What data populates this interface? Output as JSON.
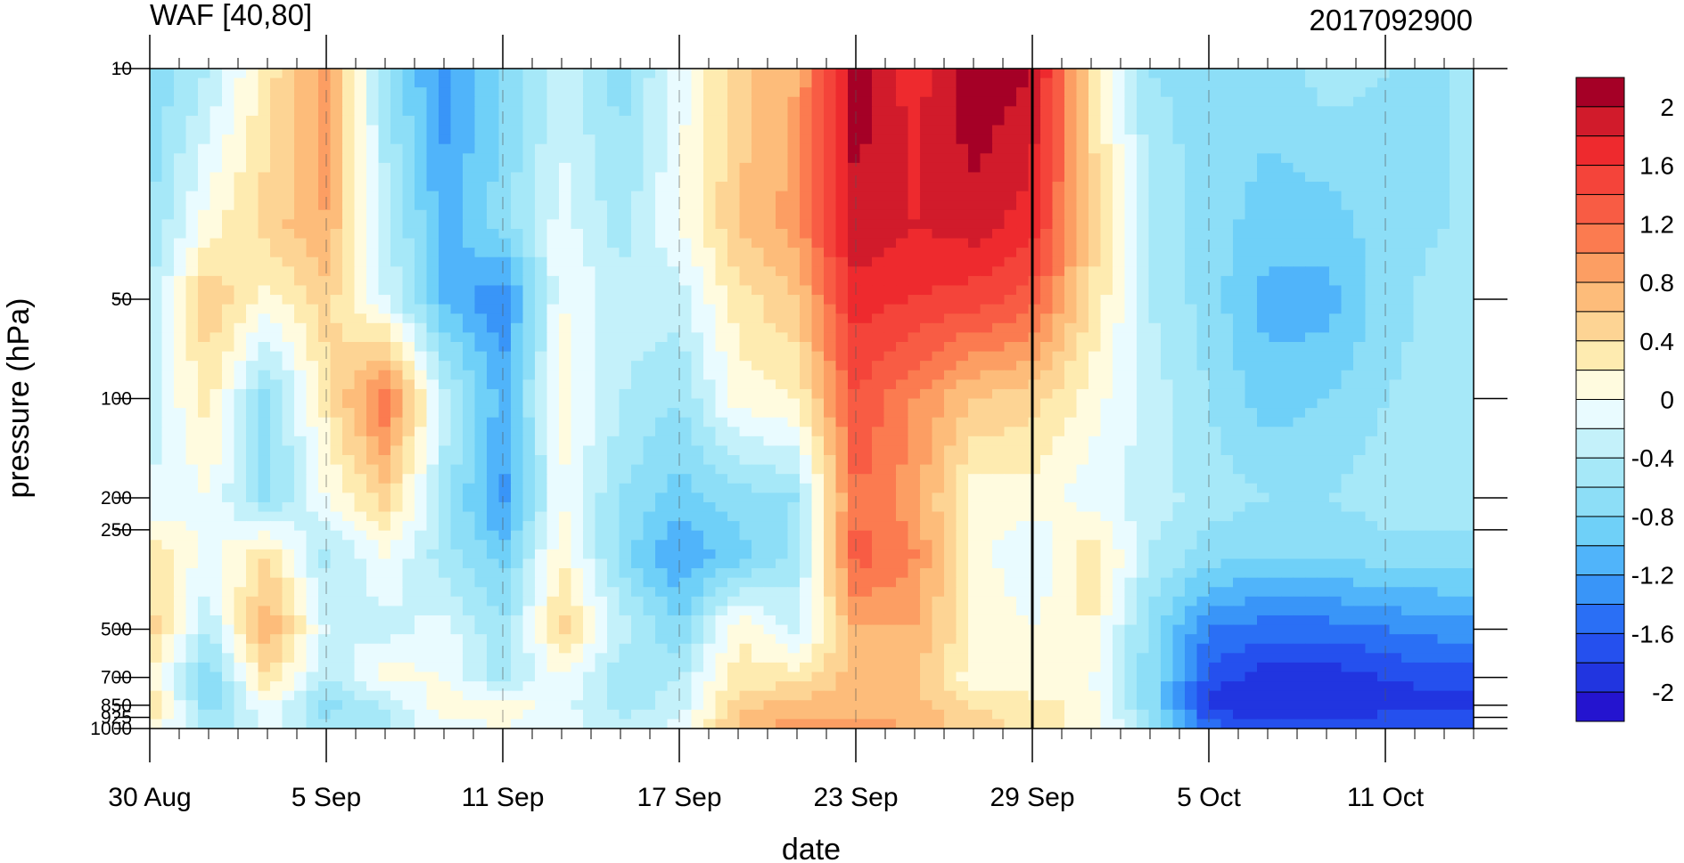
{
  "chart_data": {
    "type": "heatmap",
    "title": "WAF [40,80]",
    "subtitle": "2017092900",
    "xlabel": "date",
    "ylabel": "pressure (hPa)",
    "x_tick_labels": [
      "30 Aug",
      "5 Sep",
      "11 Sep",
      "17 Sep",
      "23 Sep",
      "29 Sep",
      "5 Oct",
      "11 Oct"
    ],
    "y_tick_labels": [
      "10",
      "50",
      "100",
      "200",
      "250",
      "500",
      "700",
      "850",
      "925",
      "1000"
    ],
    "y_tick_values": [
      10,
      50,
      100,
      200,
      250,
      500,
      700,
      850,
      925,
      1000
    ],
    "y_scale": "log",
    "y_reversed": true,
    "x_range_days": [
      0,
      45
    ],
    "forecast_start_label": "29 Sep",
    "colorbar": {
      "labels": [
        "2",
        "1.6",
        "1.2",
        "0.8",
        "0.4",
        "0",
        "-0.4",
        "-0.8",
        "-1.2",
        "-1.6",
        "-2"
      ],
      "levels": [
        2.2,
        2.0,
        1.8,
        1.6,
        1.4,
        1.2,
        1.0,
        0.8,
        0.6,
        0.4,
        0.2,
        0.0,
        -0.2,
        -0.4,
        -0.6,
        -0.8,
        -1.0,
        -1.2,
        -1.4,
        -1.6,
        -1.8,
        -2.0
      ],
      "colors": [
        "#a50026",
        "#d11b2b",
        "#ee2a2e",
        "#f4443a",
        "#f85c44",
        "#fb7b50",
        "#fc9e63",
        "#fdbc7a",
        "#fdd494",
        "#feebb0",
        "#fffbdf",
        "#e9fbff",
        "#c4f1fa",
        "#a6e8f8",
        "#8ddef7",
        "#6fd0f8",
        "#50b4fa",
        "#3995f8",
        "#2a6ff5",
        "#2550ee",
        "#2135e0",
        "#2414cf"
      ]
    },
    "profiles": {
      "days": [
        0,
        2,
        4,
        6,
        8,
        10,
        12,
        14,
        16,
        18,
        20,
        22,
        24,
        26,
        28,
        30,
        32,
        34,
        36,
        38,
        40,
        42,
        44,
        45
      ],
      "levels_hpa": [
        10,
        30,
        50,
        100,
        200,
        300,
        500,
        700,
        850,
        1000
      ],
      "values": [
        [
          -0.7,
          -0.3,
          0.4,
          1.0,
          -0.5,
          -1.2,
          -0.7,
          -0.2,
          -0.6,
          0.0,
          0.6,
          0.9,
          2.2,
          1.8,
          2.3,
          2.1,
          0.5,
          -0.5,
          -0.6,
          -0.6,
          -0.4,
          -0.5,
          -0.5,
          -0.5
        ],
        [
          -0.5,
          0.2,
          0.6,
          0.9,
          -0.2,
          -1.0,
          -0.6,
          0.0,
          -0.4,
          0.1,
          0.7,
          1.0,
          2.1,
          1.9,
          2.0,
          1.8,
          0.6,
          -0.3,
          -0.6,
          -0.8,
          -0.8,
          -0.6,
          -0.5,
          -0.5
        ],
        [
          -0.3,
          0.7,
          0.2,
          0.6,
          -0.1,
          -0.9,
          -1.3,
          0.1,
          -0.2,
          -0.2,
          0.4,
          0.7,
          1.8,
          1.7,
          1.6,
          1.4,
          0.5,
          -0.3,
          -0.6,
          -1.0,
          -1.0,
          -0.6,
          -0.4,
          -0.4
        ],
        [
          -0.2,
          0.4,
          -0.6,
          0.4,
          1.3,
          -0.2,
          -1.0,
          0.2,
          -0.3,
          -0.5,
          0.2,
          0.3,
          1.5,
          1.1,
          0.7,
          0.6,
          0.2,
          -0.2,
          -0.5,
          -0.8,
          -0.7,
          -0.5,
          -0.4,
          -0.4
        ],
        [
          -0.1,
          0.1,
          -0.6,
          0.1,
          0.6,
          -0.4,
          -1.2,
          0.1,
          -0.5,
          -0.8,
          -0.6,
          -0.5,
          1.3,
          1.0,
          0.2,
          0.2,
          0.0,
          -0.2,
          -0.4,
          -0.5,
          -0.5,
          -0.4,
          -0.4,
          -0.4
        ],
        [
          0.5,
          0.0,
          0.5,
          -0.4,
          0.1,
          -0.4,
          -0.8,
          0.3,
          -0.6,
          -1.1,
          -0.8,
          -0.4,
          1.4,
          1.1,
          0.2,
          -0.1,
          0.5,
          -0.3,
          -0.6,
          -0.7,
          -0.7,
          -0.6,
          -0.6,
          -0.6
        ],
        [
          0.6,
          -0.3,
          0.9,
          -0.1,
          -0.2,
          0.0,
          -0.5,
          0.6,
          -0.2,
          -0.7,
          0.3,
          -0.2,
          0.9,
          0.9,
          0.3,
          0.1,
          0.3,
          -0.6,
          -1.3,
          -1.4,
          -1.4,
          -1.3,
          -1.2,
          -1.2
        ],
        [
          0.3,
          -0.7,
          0.5,
          -0.3,
          0.2,
          0.1,
          -0.4,
          0.1,
          -0.5,
          -0.3,
          0.4,
          0.4,
          0.8,
          0.7,
          0.2,
          0.1,
          0.1,
          -0.6,
          -1.6,
          -1.8,
          -1.8,
          -1.7,
          -1.6,
          -1.6
        ],
        [
          0.5,
          -0.6,
          0.1,
          -0.6,
          -0.3,
          0.2,
          0.2,
          0.0,
          -0.4,
          -0.2,
          0.6,
          0.8,
          0.8,
          0.8,
          0.5,
          0.4,
          0.2,
          -0.6,
          -1.8,
          -1.9,
          -1.9,
          -1.8,
          -1.8,
          -1.8
        ],
        [
          0.3,
          -0.5,
          0.0,
          -0.4,
          -0.3,
          0.0,
          0.1,
          0.0,
          -0.2,
          0.0,
          0.8,
          1.0,
          1.0,
          0.9,
          0.6,
          0.4,
          0.2,
          -0.4,
          -1.4,
          -1.6,
          -1.6,
          -1.5,
          -1.5,
          -1.5
        ]
      ]
    }
  }
}
